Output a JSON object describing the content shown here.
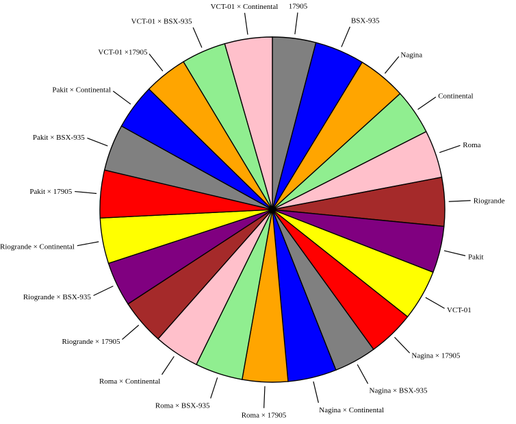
{
  "chart_data": {
    "type": "pie",
    "start_angle_deg": 0,
    "direction": "clockwise",
    "categories": [
      "17905",
      "BSX-935",
      "Nagina",
      "Continental",
      "Roma",
      "Riogrande",
      "Pakit",
      "VCT-01",
      "Nagina × 17905",
      "Nagina × BSX-935",
      "Nagina × Continental",
      "Roma × 17905",
      "Roma × BSX-935",
      "Roma × Continental",
      "Riogrande × 17905",
      "Riogrande × BSX-935",
      "Riogrande × Continental",
      "Pakit × 17905",
      "Pakit × BSX-935",
      "Pakit × Continental",
      "VCT-01 ×17905",
      "VCT-01 × BSX-935",
      "VCT-01 × Continental"
    ],
    "values": [
      4.2,
      4.8,
      4.7,
      4.4,
      4.6,
      4.7,
      4.5,
      4.9,
      4.5,
      4.1,
      4.7,
      4.4,
      4.6,
      4.4,
      4.4,
      4.3,
      4.4,
      4.6,
      4.5,
      4.4,
      4.2,
      4.3,
      4.6
    ],
    "colors": [
      "#808080",
      "#0000ff",
      "#ffa500",
      "#90ee90",
      "#ffc0cb",
      "#a52a2a",
      "#800080",
      "#ffff00",
      "#ff0000",
      "#808080",
      "#0000ff",
      "#ffa500",
      "#90ee90",
      "#ffc0cb",
      "#a52a2a",
      "#800080",
      "#ffff00",
      "#ff0000",
      "#808080",
      "#0000ff",
      "#ffa500",
      "#90ee90",
      "#ffc0cb"
    ]
  }
}
